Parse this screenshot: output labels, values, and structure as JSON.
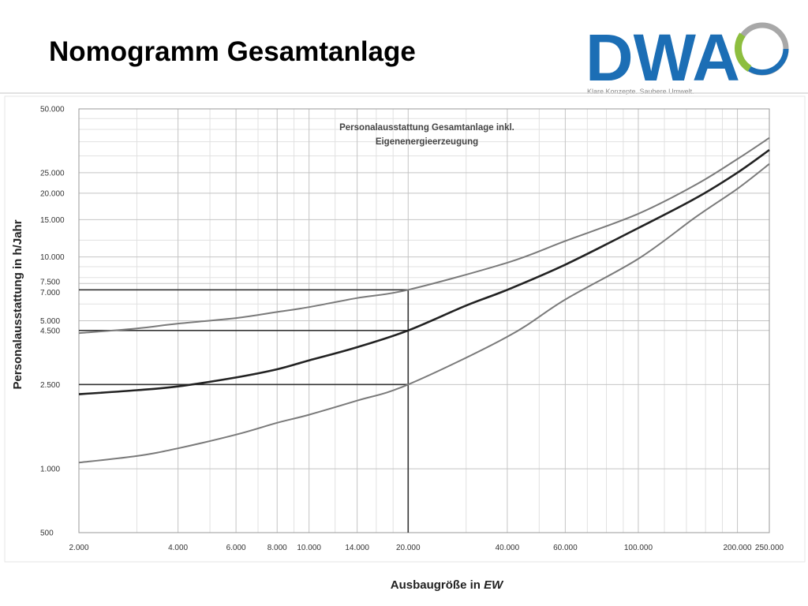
{
  "slide": {
    "title": "Nomogramm Gesamtanlage"
  },
  "logo": {
    "text": "DWA",
    "tagline": "Klare Konzepte. Saubere Umwelt.",
    "colors": {
      "blue": "#1c6eb5",
      "green": "#8dbe3f",
      "grey": "#a8a8a8"
    }
  },
  "chart_data": {
    "type": "line",
    "title_lines": [
      "Personalausstattung Gesamtanlage inkl.",
      "Eigenenergieerzeugung"
    ],
    "xlabel": "Ausbaugröße in",
    "xlabel_unit": "EW",
    "ylabel": "Personalausstattung  in h/Jahr",
    "x_scale": "log",
    "y_scale": "log",
    "xlim": [
      2000,
      250000
    ],
    "ylim": [
      500,
      50000
    ],
    "grid": true,
    "x_ticks": [
      {
        "value": 2000,
        "label": "2.000"
      },
      {
        "value": 4000,
        "label": "4.000"
      },
      {
        "value": 6000,
        "label": "6.000"
      },
      {
        "value": 8000,
        "label": "8.000"
      },
      {
        "value": 10000,
        "label": "10.000"
      },
      {
        "value": 14000,
        "label": "14.000"
      },
      {
        "value": 20000,
        "label": "20.000"
      },
      {
        "value": 40000,
        "label": "40.000"
      },
      {
        "value": 60000,
        "label": "60.000"
      },
      {
        "value": 100000,
        "label": "100.000"
      },
      {
        "value": 200000,
        "label": "200.000"
      },
      {
        "value": 250000,
        "label": "250.000"
      }
    ],
    "y_ticks": [
      {
        "value": 500,
        "label": "500"
      },
      {
        "value": 1000,
        "label": "1.000"
      },
      {
        "value": 2500,
        "label": "2.500"
      },
      {
        "value": 4500,
        "label": "4.500"
      },
      {
        "value": 5000,
        "label": "5.000"
      },
      {
        "value": 7000,
        "label": "7.000"
      },
      {
        "value": 7500,
        "label": "7.500"
      },
      {
        "value": 10000,
        "label": "10.000"
      },
      {
        "value": 15000,
        "label": "15.000"
      },
      {
        "value": 20000,
        "label": "20.000"
      },
      {
        "value": 25000,
        "label": "25.000"
      },
      {
        "value": 50000,
        "label": "50.000"
      }
    ],
    "x_minor_grid": [
      3000,
      5000,
      7000,
      9000,
      12000,
      16000,
      18000,
      30000,
      50000,
      70000,
      80000,
      90000,
      120000,
      140000,
      160000,
      180000
    ],
    "y_minor_grid": [
      6000,
      8000,
      9000,
      12000,
      30000,
      35000,
      40000,
      45000
    ],
    "series": [
      {
        "color": "#7a7a7a",
        "points": [
          [
            2000,
            4370
          ],
          [
            3000,
            4600
          ],
          [
            4000,
            4850
          ],
          [
            6000,
            5150
          ],
          [
            8000,
            5500
          ],
          [
            10000,
            5800
          ],
          [
            14000,
            6400
          ],
          [
            20000,
            7000
          ],
          [
            40000,
            9400
          ],
          [
            60000,
            11900
          ],
          [
            100000,
            16000
          ],
          [
            150000,
            22000
          ],
          [
            200000,
            29000
          ],
          [
            250000,
            36500
          ]
        ]
      },
      {
        "color": "#222222",
        "points": [
          [
            2000,
            2250
          ],
          [
            3000,
            2350
          ],
          [
            4000,
            2450
          ],
          [
            6000,
            2700
          ],
          [
            8000,
            2950
          ],
          [
            10000,
            3250
          ],
          [
            14000,
            3750
          ],
          [
            20000,
            4500
          ],
          [
            30000,
            5900
          ],
          [
            40000,
            7000
          ],
          [
            60000,
            9200
          ],
          [
            100000,
            13700
          ],
          [
            150000,
            19000
          ],
          [
            200000,
            25000
          ],
          [
            250000,
            32000
          ]
        ]
      },
      {
        "color": "#7a7a7a",
        "points": [
          [
            2000,
            1070
          ],
          [
            3000,
            1150
          ],
          [
            4000,
            1250
          ],
          [
            6000,
            1450
          ],
          [
            8000,
            1650
          ],
          [
            10000,
            1800
          ],
          [
            14000,
            2100
          ],
          [
            20000,
            2500
          ],
          [
            40000,
            4200
          ],
          [
            60000,
            6300
          ],
          [
            100000,
            9800
          ],
          [
            150000,
            15500
          ],
          [
            200000,
            21000
          ],
          [
            250000,
            27500
          ]
        ]
      }
    ],
    "reference_lines": [
      {
        "type": "vertical",
        "x": 20000,
        "y_from": 500,
        "y_to": 7000
      },
      {
        "type": "horizontal",
        "y": 7000,
        "x_from": 2000,
        "x_to": 20000
      },
      {
        "type": "horizontal",
        "y": 4500,
        "x_from": 2000,
        "x_to": 20000
      },
      {
        "type": "horizontal",
        "y": 2500,
        "x_from": 2000,
        "x_to": 20000
      }
    ]
  }
}
